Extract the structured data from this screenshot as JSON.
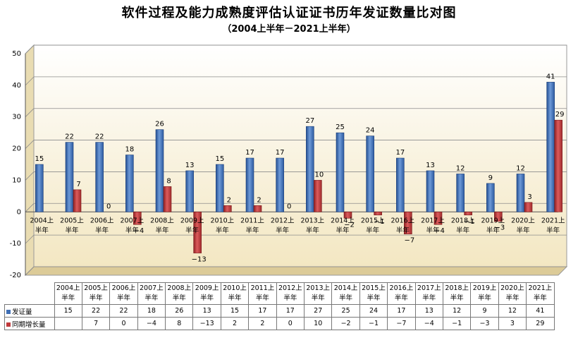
{
  "title": "软件过程及能力成熟度评估认证证书历年发证数量比对图",
  "subtitle": "（2004上半年－2021上半年）",
  "chart_data": {
    "type": "bar",
    "categories": [
      "2004上半年",
      "2005上半年",
      "2006上半年",
      "2007上半年",
      "2008上半年",
      "2009上半年",
      "2010上半年",
      "2011上半年",
      "2012上半年",
      "2013上半年",
      "2014上半年",
      "2015上半年",
      "2016上半年",
      "2017上半年",
      "2018上半年",
      "2019上半年",
      "2020上半年",
      "2021上半年"
    ],
    "category_lines": [
      [
        "2004上",
        "半年"
      ],
      [
        "2005上",
        "半年"
      ],
      [
        "2006上",
        "半年"
      ],
      [
        "2007上",
        "半年"
      ],
      [
        "2008上",
        "半年"
      ],
      [
        "2009上",
        "半年"
      ],
      [
        "2010上",
        "半年"
      ],
      [
        "2011上",
        "半年"
      ],
      [
        "2012上",
        "半年"
      ],
      [
        "2013上",
        "半年"
      ],
      [
        "2014上",
        "半年"
      ],
      [
        "2015上",
        "半年"
      ],
      [
        "2016上",
        "半年"
      ],
      [
        "2017上",
        "半年"
      ],
      [
        "2018上",
        "半年"
      ],
      [
        "2019上",
        "半年"
      ],
      [
        "2020上",
        "半年"
      ],
      [
        "2021上",
        "半年"
      ]
    ],
    "series": [
      {
        "name": "发证量",
        "color": "#3f6fb5",
        "values": [
          15,
          22,
          22,
          18,
          26,
          13,
          15,
          17,
          17,
          27,
          25,
          24,
          17,
          13,
          12,
          9,
          12,
          41
        ]
      },
      {
        "name": "同期增长量",
        "color": "#c0393b",
        "values": [
          null,
          7,
          0,
          -4,
          8,
          -13,
          2,
          2,
          0,
          10,
          -2,
          -1,
          -7,
          -4,
          -1,
          -3,
          3,
          29
        ]
      }
    ],
    "y_ticks": [
      "50",
      "40",
      "30",
      "20",
      "10",
      "0",
      "-10",
      "-20"
    ],
    "ylim": [
      -20,
      50
    ],
    "grid": true,
    "legend": "data-table",
    "data_table": {
      "rows": [
        {
          "label": "发证量",
          "cells": [
            "15",
            "22",
            "22",
            "18",
            "26",
            "13",
            "15",
            "17",
            "17",
            "27",
            "25",
            "24",
            "17",
            "13",
            "12",
            "9",
            "12",
            "41"
          ]
        },
        {
          "label": "同期增长量",
          "cells": [
            "",
            "7",
            "0",
            "−4",
            "8",
            "−13",
            "2",
            "2",
            "0",
            "10",
            "−2",
            "−1",
            "−7",
            "−4",
            "−1",
            "−3",
            "3",
            "29"
          ]
        }
      ]
    }
  }
}
